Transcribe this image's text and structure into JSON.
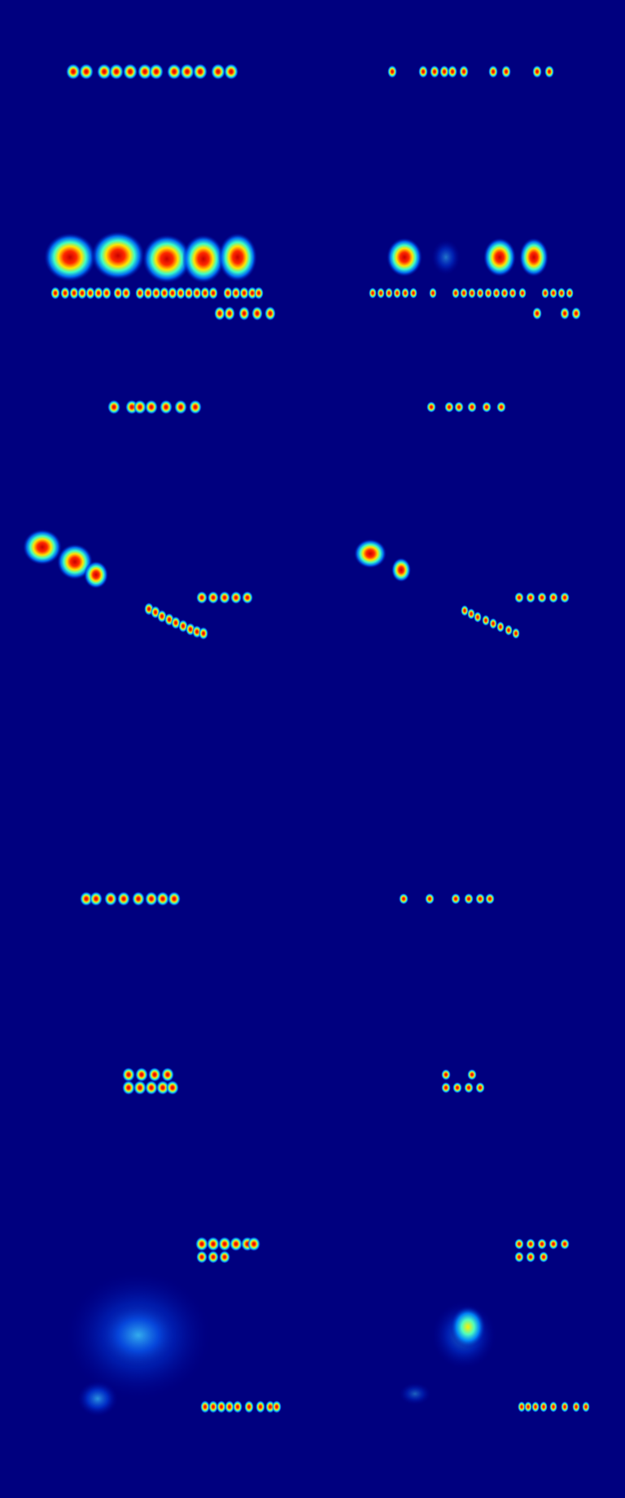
{
  "image": {
    "description_free": true,
    "colormap": "jet",
    "background_color": "#00007f"
  },
  "panels": [
    {
      "id": "left",
      "label": ""
    },
    {
      "id": "right",
      "label": ""
    }
  ]
}
